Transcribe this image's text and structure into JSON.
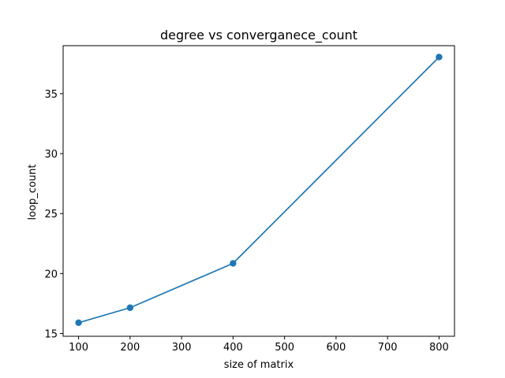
{
  "chart_data": {
    "type": "line",
    "title": "degree vs converganece_count",
    "xlabel": "size of matrix",
    "ylabel": "loop_count",
    "xlim": [
      70,
      830
    ],
    "ylim": [
      14.77,
      39.0
    ],
    "xticks": [
      100,
      200,
      300,
      400,
      500,
      600,
      700,
      800
    ],
    "yticks": [
      15,
      20,
      25,
      30,
      35
    ],
    "grid": false,
    "series": [
      {
        "x": [
          100,
          200,
          400,
          800
        ],
        "y": [
          15.9,
          17.15,
          20.85,
          38.05
        ],
        "color": "#1f77b4",
        "marker": "circle"
      }
    ]
  }
}
